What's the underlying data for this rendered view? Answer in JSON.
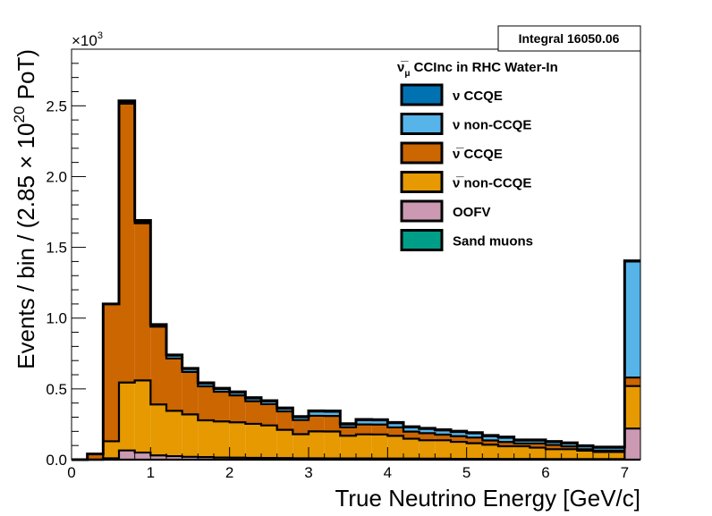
{
  "chart_data": {
    "type": "stacked_histogram",
    "title": "",
    "xlabel": "True Neutrino Energy [GeV/c]",
    "ylabel": "Events / bin / (2.85 × 10²⁰ PoT)",
    "ylabel_base": "Events / bin / (2.85 × 10",
    "ylabel_sup": "20",
    "ylabel_tail": " PoT)",
    "y_scale_label": "×10",
    "y_scale_exp": "3",
    "xlim": [
      0,
      7.2
    ],
    "ylim": [
      0,
      2.9
    ],
    "x_ticks": [
      "0",
      "1",
      "2",
      "3",
      "4",
      "5",
      "6",
      "7"
    ],
    "y_ticks": [
      "0.0",
      "0.5",
      "1.0",
      "1.5",
      "2.0",
      "2.5"
    ],
    "y_tick_values": [
      0,
      0.5,
      1.0,
      1.5,
      2.0,
      2.5
    ],
    "legend_header": {
      "prefix": "ν̅",
      "sub": "μ",
      "suffix": " CCInc in RHC Water-In"
    },
    "stats_box": "Integral 16050.06",
    "bin_edges": [
      0,
      0.2,
      0.4,
      0.6,
      0.8,
      1.0,
      1.2,
      1.4,
      1.6,
      1.8,
      2.0,
      2.2,
      2.4,
      2.6,
      2.8,
      3.0,
      3.2,
      3.4,
      3.6,
      3.8,
      4.0,
      4.2,
      4.4,
      4.6,
      4.8,
      5.0,
      5.2,
      5.4,
      5.6,
      5.8,
      6.0,
      6.2,
      6.4,
      6.6,
      6.8,
      7.0,
      7.2
    ],
    "series": [
      {
        "name": "Sand muons",
        "color": "#009e88",
        "values": [
          0,
          0,
          0,
          0,
          0,
          0,
          0,
          0,
          0,
          0,
          0,
          0,
          0,
          0,
          0,
          0,
          0,
          0,
          0,
          0,
          0,
          0,
          0,
          0,
          0,
          0,
          0,
          0,
          0,
          0,
          0,
          0,
          0,
          0,
          0,
          0
        ]
      },
      {
        "name": "OOFV",
        "color": "#cc99b3",
        "values": [
          0,
          0,
          0.01,
          0.065,
          0.05,
          0.03,
          0.025,
          0.02,
          0.018,
          0.015,
          0.014,
          0.013,
          0.012,
          0.011,
          0.01,
          0.01,
          0.009,
          0.009,
          0.009,
          0.008,
          0.008,
          0.008,
          0.007,
          0.007,
          0.006,
          0.006,
          0.006,
          0.005,
          0.005,
          0.005,
          0.004,
          0.004,
          0.004,
          0.004,
          0.004,
          0.22
        ]
      },
      {
        "name": "ν̅ non-CCQE",
        "color": "#e69900",
        "values": [
          0,
          0,
          0.12,
          0.48,
          0.51,
          0.36,
          0.32,
          0.3,
          0.26,
          0.255,
          0.25,
          0.24,
          0.23,
          0.2,
          0.17,
          0.19,
          0.19,
          0.16,
          0.17,
          0.17,
          0.16,
          0.14,
          0.13,
          0.13,
          0.12,
          0.11,
          0.1,
          0.09,
          0.09,
          0.08,
          0.07,
          0.07,
          0.06,
          0.05,
          0.05,
          0.3
        ]
      },
      {
        "name": "ν̅ CCQE",
        "color": "#cc6600",
        "values": [
          0,
          0.04,
          0.97,
          1.97,
          1.11,
          0.55,
          0.37,
          0.3,
          0.24,
          0.21,
          0.19,
          0.16,
          0.15,
          0.13,
          0.1,
          0.11,
          0.11,
          0.06,
          0.07,
          0.07,
          0.06,
          0.05,
          0.05,
          0.04,
          0.04,
          0.04,
          0.03,
          0.03,
          0.02,
          0.03,
          0.03,
          0.02,
          0.01,
          0.01,
          0.01,
          0.06
        ]
      },
      {
        "name": "ν non-CCQE",
        "color": "#56b4e9",
        "values": [
          0,
          0,
          0,
          0.01,
          0.01,
          0.01,
          0.02,
          0.02,
          0.02,
          0.02,
          0.02,
          0.02,
          0.02,
          0.02,
          0.02,
          0.03,
          0.03,
          0.02,
          0.03,
          0.03,
          0.03,
          0.03,
          0.03,
          0.03,
          0.03,
          0.03,
          0.03,
          0.03,
          0.02,
          0.02,
          0.02,
          0.02,
          0.02,
          0.02,
          0.02,
          0.82
        ]
      },
      {
        "name": "ν CCQE",
        "color": "#0072b2",
        "values": [
          0,
          0,
          0,
          0.01,
          0.01,
          0.005,
          0.005,
          0.005,
          0.005,
          0.005,
          0.005,
          0.005,
          0.005,
          0.005,
          0.005,
          0.005,
          0.005,
          0.005,
          0.005,
          0.005,
          0.005,
          0.005,
          0.005,
          0.005,
          0.005,
          0.005,
          0.005,
          0.005,
          0.005,
          0.005,
          0.005,
          0.005,
          0.005,
          0.005,
          0.005,
          0.005
        ]
      }
    ],
    "legend": [
      {
        "label": "ν CCQE",
        "color": "#0072b2"
      },
      {
        "label": "ν non-CCQE",
        "color": "#56b4e9"
      },
      {
        "label": "ν̅ CCQE",
        "color": "#cc6600"
      },
      {
        "label": "ν̅ non-CCQE",
        "color": "#e69900"
      },
      {
        "label": "OOFV",
        "color": "#cc99b3"
      },
      {
        "label": "Sand muons",
        "color": "#009e88"
      }
    ],
    "legend_placement": "top-right",
    "grid": false
  }
}
